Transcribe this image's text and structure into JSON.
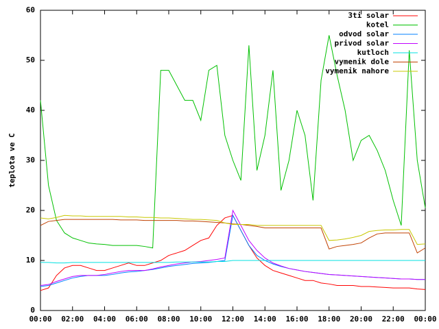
{
  "chart_data": {
    "type": "line",
    "ylabel": "teplota ve C",
    "x": [
      0,
      0.5,
      1,
      1.5,
      2,
      2.5,
      3,
      3.5,
      4,
      4.5,
      5,
      5.5,
      6,
      6.5,
      7,
      7.5,
      8,
      8.5,
      9,
      9.5,
      10,
      10.5,
      11,
      11.5,
      12,
      12.5,
      13,
      13.5,
      14,
      14.5,
      15,
      15.5,
      16,
      16.5,
      17,
      17.5,
      18,
      18.5,
      19,
      19.5,
      20,
      20.5,
      21,
      21.5,
      22,
      22.5,
      23,
      23.5,
      24
    ],
    "xlim": [
      0,
      24
    ],
    "xticks": [
      {
        "value": 0,
        "label": "00:00"
      },
      {
        "value": 2,
        "label": "02:00"
      },
      {
        "value": 4,
        "label": "04:00"
      },
      {
        "value": 6,
        "label": "06:00"
      },
      {
        "value": 8,
        "label": "08:00"
      },
      {
        "value": 10,
        "label": "10:00"
      },
      {
        "value": 12,
        "label": "12:00"
      },
      {
        "value": 14,
        "label": "14:00"
      },
      {
        "value": 16,
        "label": "16:00"
      },
      {
        "value": 18,
        "label": "18:00"
      },
      {
        "value": 20,
        "label": "20:00"
      },
      {
        "value": 22,
        "label": "22:00"
      },
      {
        "value": 24,
        "label": "00:00"
      }
    ],
    "ylim": [
      0,
      60
    ],
    "yticks": [
      0,
      10,
      20,
      30,
      40,
      50,
      60
    ],
    "grid": false,
    "legend": "top-right",
    "series": [
      {
        "name": "3ti solar",
        "color": "#ff0000",
        "values": [
          4,
          4.5,
          7,
          8.5,
          9,
          9,
          8.5,
          8,
          8,
          8.5,
          9,
          9.5,
          9,
          9,
          9.5,
          10,
          11,
          11.5,
          12,
          13,
          14,
          14.5,
          17,
          18.5,
          19,
          16,
          13,
          10.5,
          9,
          8,
          7.5,
          7,
          6.5,
          6,
          6,
          5.5,
          5.3,
          5,
          5,
          5,
          4.8,
          4.8,
          4.7,
          4.6,
          4.5,
          4.5,
          4.5,
          4.3,
          4.2
        ]
      },
      {
        "name": "kotel",
        "color": "#00c000",
        "values": [
          42,
          25,
          18,
          15.5,
          14.5,
          14,
          13.5,
          13.3,
          13.2,
          13,
          13,
          13,
          13,
          12.8,
          12.5,
          48,
          48,
          45,
          42,
          42,
          38,
          48,
          49,
          35,
          30,
          26,
          53,
          28,
          35,
          48,
          24,
          30,
          40,
          35,
          22,
          46,
          55,
          47,
          40,
          30,
          34,
          35,
          32,
          28,
          22,
          17,
          52,
          30,
          20.5
        ]
      },
      {
        "name": "odvod solar",
        "color": "#0080ff",
        "values": [
          4.8,
          5,
          5.5,
          6,
          6.5,
          6.8,
          7,
          7,
          7,
          7.2,
          7.5,
          7.7,
          7.8,
          8,
          8.2,
          8.5,
          8.8,
          9,
          9.2,
          9.4,
          9.5,
          9.6,
          9.8,
          10,
          19,
          16,
          13,
          11,
          10,
          9.3,
          8.8,
          8.4,
          8.1,
          7.8,
          7.6,
          7.4,
          7.2,
          7.1,
          7,
          6.9,
          6.8,
          6.7,
          6.6,
          6.5,
          6.4,
          6.3,
          6.3,
          6.2,
          6.2
        ]
      },
      {
        "name": "privod solar",
        "color": "#c000ff",
        "values": [
          5,
          5.2,
          5.8,
          6.3,
          6.8,
          7,
          7,
          7,
          7.2,
          7.5,
          7.8,
          8,
          8,
          8,
          8.3,
          8.7,
          9,
          9.3,
          9.5,
          9.7,
          9.8,
          10,
          10.2,
          10.5,
          20,
          17,
          14,
          12,
          10.5,
          9.5,
          8.9,
          8.4,
          8.1,
          7.8,
          7.6,
          7.4,
          7.2,
          7.1,
          7,
          6.9,
          6.8,
          6.7,
          6.6,
          6.5,
          6.4,
          6.3,
          6.3,
          6.2,
          6.2
        ]
      },
      {
        "name": "kutloch",
        "color": "#00e0e0",
        "values": [
          9.6,
          9.6,
          9.5,
          9.5,
          9.6,
          9.6,
          9.6,
          9.6,
          9.6,
          9.6,
          9.6,
          9.6,
          9.6,
          9.6,
          9.6,
          9.6,
          9.6,
          9.7,
          9.7,
          9.7,
          9.7,
          9.7,
          9.8,
          9.8,
          10,
          10,
          10,
          10,
          10,
          10,
          10,
          10,
          10,
          10,
          10,
          10,
          10,
          10,
          10,
          10,
          10,
          10,
          10,
          10,
          10,
          10,
          10,
          10,
          10
        ]
      },
      {
        "name": "vymenik dole",
        "color": "#c04000",
        "values": [
          17,
          17.8,
          18,
          18.2,
          18.2,
          18.2,
          18.2,
          18.2,
          18.2,
          18.2,
          18.1,
          18.1,
          18.1,
          18,
          18,
          18,
          18,
          18,
          17.9,
          17.9,
          17.8,
          17.7,
          17.6,
          17.5,
          17.3,
          17.2,
          17,
          16.8,
          16.5,
          16.5,
          16.5,
          16.5,
          16.5,
          16.5,
          16.5,
          16.5,
          12.3,
          12.8,
          13,
          13.2,
          13.5,
          14.5,
          15.3,
          15.5,
          15.5,
          15.5,
          15.5,
          11.5,
          12.5
        ]
      },
      {
        "name": "vymenik nahore",
        "color": "#c8c800",
        "values": [
          18.5,
          18.3,
          18.6,
          19,
          18.9,
          18.9,
          18.8,
          18.8,
          18.8,
          18.8,
          18.8,
          18.7,
          18.7,
          18.6,
          18.6,
          18.5,
          18.5,
          18.4,
          18.3,
          18.2,
          18.2,
          18.1,
          18,
          17.5,
          17.2,
          17.2,
          17.2,
          17,
          17,
          17,
          17,
          17,
          17,
          17,
          17,
          17,
          14,
          14.1,
          14.3,
          14.6,
          15,
          15.8,
          16,
          16.1,
          16.1,
          16.2,
          16.2,
          13.2,
          13.3
        ]
      }
    ]
  }
}
